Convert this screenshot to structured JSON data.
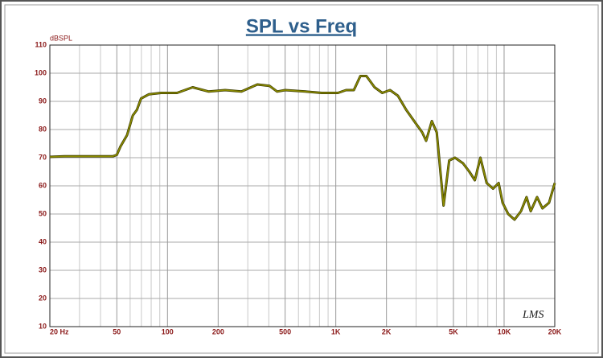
{
  "chart_data": {
    "type": "line",
    "title": "SPL vs Freq",
    "y_label": "dBSPL",
    "watermark": "LMS",
    "x_scale": "log",
    "grid": true,
    "xlim": [
      20,
      20000
    ],
    "ylim": [
      10,
      110
    ],
    "xticks": [
      {
        "value": 20,
        "label": "20  Hz"
      },
      50,
      100,
      200,
      500,
      {
        "value": 1000,
        "label": "1K"
      },
      {
        "value": 2000,
        "label": "2K"
      },
      {
        "value": 5000,
        "label": "5K"
      },
      {
        "value": 10000,
        "label": "10K"
      },
      {
        "value": 20000,
        "label": "20K"
      }
    ],
    "xminor": [
      30,
      40,
      60,
      70,
      80,
      90,
      300,
      400,
      600,
      700,
      800,
      900,
      3000,
      4000,
      6000,
      7000,
      8000,
      9000
    ],
    "yticks": [
      10,
      20,
      30,
      40,
      50,
      60,
      70,
      80,
      90,
      100,
      110
    ],
    "series": [
      {
        "color": "#8c8c00",
        "x": [
          20,
          24.4,
          30.3,
          37.9,
          47.3,
          50,
          52.6,
          57.5,
          62.2,
          65.8,
          69.6,
          77.4,
          91.6,
          114,
          141,
          176,
          220,
          275,
          342,
          404,
          448,
          500,
          660,
          824,
          1030,
          1150,
          1280,
          1400,
          1520,
          1700,
          1890,
          2100,
          2340,
          2620,
          2920,
          3260,
          3440,
          3720,
          3980,
          4370,
          4720,
          5110,
          5700,
          6220,
          6700,
          7230,
          7880,
          8600,
          9280,
          9800,
          10580,
          11540,
          12600,
          13600,
          14400,
          15700,
          16900,
          18500,
          20000
        ],
        "values": [
          70.3,
          70.5,
          70.5,
          70.5,
          70.5,
          71,
          74,
          78,
          85,
          87,
          91,
          92.5,
          93,
          93,
          95,
          93.5,
          94,
          93.5,
          96,
          95.5,
          93.5,
          94,
          93.5,
          93,
          93,
          94,
          94,
          99,
          99,
          95,
          93,
          94,
          92,
          87,
          83,
          79,
          76,
          83,
          79,
          53,
          69,
          70,
          68,
          65,
          62,
          70,
          61,
          59,
          61,
          54,
          50,
          48,
          51,
          56,
          51,
          56,
          52,
          54,
          61
        ]
      }
    ]
  }
}
